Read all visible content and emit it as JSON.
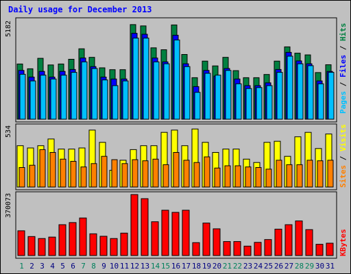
{
  "title": "Daily usage for December 2013",
  "colors": {
    "hits": "#008040",
    "files": "#0000ff",
    "pages": "#00c0ff",
    "visits": "#ffff00",
    "sites": "#ff8000",
    "kbytes": "#ff0000",
    "weekend_day": "#00805c",
    "weekday": "#000080"
  },
  "chart_data": [
    {
      "type": "bar",
      "categories": [
        "1",
        "2",
        "3",
        "4",
        "5",
        "6",
        "7",
        "8",
        "9",
        "10",
        "11",
        "12",
        "13",
        "14",
        "15",
        "16",
        "17",
        "18",
        "19",
        "20",
        "21",
        "22",
        "23",
        "24",
        "25",
        "26",
        "27",
        "28",
        "29",
        "30",
        "31"
      ],
      "weekend_days": [
        "1",
        "7",
        "8",
        "14",
        "15",
        "21",
        "22",
        "28",
        "29"
      ],
      "max_label": "5182",
      "ylim": [
        0,
        5182
      ],
      "series": [
        {
          "name": "Hits",
          "values": [
            2900,
            2650,
            3200,
            2850,
            2900,
            3150,
            3700,
            3250,
            2700,
            2600,
            2600,
            4970,
            4900,
            3750,
            3650,
            4950,
            3400,
            2180,
            3050,
            2800,
            3250,
            2550,
            2180,
            2180,
            2350,
            3050,
            3800,
            3470,
            3380,
            2450,
            2860
          ]
        },
        {
          "name": "Files",
          "values": [
            2850,
            2500,
            2800,
            2500,
            2800,
            2900,
            3500,
            3050,
            2500,
            2400,
            2400,
            4800,
            4750,
            3500,
            3300,
            4700,
            3200,
            2000,
            2850,
            2550,
            2950,
            2400,
            2050,
            2050,
            2200,
            2900,
            3800,
            3350,
            3200,
            2300,
            2800
          ]
        },
        {
          "name": "Pages",
          "values": [
            2650,
            2300,
            2600,
            2400,
            2600,
            2750,
            3300,
            2950,
            2350,
            2050,
            2300,
            4550,
            4550,
            3300,
            3200,
            4450,
            3050,
            1700,
            2700,
            2600,
            2850,
            2150,
            1900,
            1950,
            2050,
            2750,
            3600,
            3200,
            3100,
            2150,
            2750
          ]
        }
      ]
    },
    {
      "type": "bar",
      "max_label": "534",
      "ylim": [
        0,
        534
      ],
      "series": [
        {
          "name": "Visits",
          "values": [
            370,
            350,
            370,
            430,
            340,
            340,
            350,
            510,
            400,
            150,
            240,
            335,
            370,
            370,
            490,
            510,
            370,
            520,
            400,
            310,
            340,
            340,
            250,
            220,
            400,
            410,
            275,
            450,
            490,
            345,
            475
          ]
        },
        {
          "name": "Sites",
          "values": [
            175,
            195,
            335,
            310,
            250,
            230,
            180,
            210,
            275,
            245,
            210,
            245,
            235,
            250,
            200,
            310,
            240,
            220,
            270,
            170,
            190,
            190,
            180,
            175,
            160,
            240,
            200,
            200,
            240,
            235,
            240
          ]
        }
      ]
    },
    {
      "type": "bar",
      "max_label": "370073",
      "ylim": [
        0,
        370073
      ],
      "series": [
        {
          "name": "KBytes",
          "values": [
            150000,
            115000,
            103000,
            112000,
            187000,
            200000,
            228000,
            132000,
            117000,
            103000,
            136000,
            370073,
            345000,
            205000,
            275000,
            262000,
            275000,
            78000,
            197000,
            162000,
            85000,
            85000,
            57000,
            80000,
            97000,
            160000,
            187000,
            210000,
            157000,
            68000,
            75000
          ]
        }
      ]
    }
  ]
}
